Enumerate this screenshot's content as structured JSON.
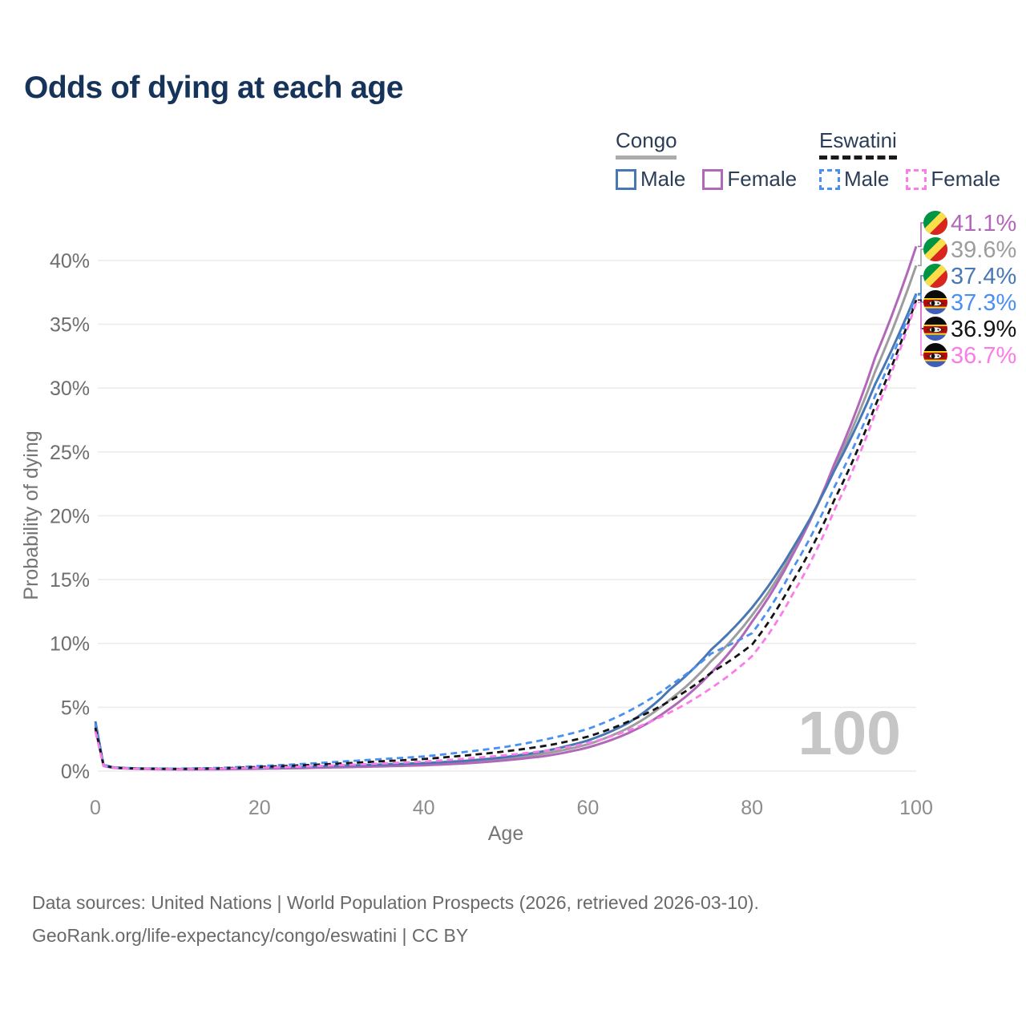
{
  "title": "Odds of dying at each age",
  "legend": {
    "groups": [
      {
        "name": "Congo",
        "line_style": "solid",
        "underline_color": "#ababab",
        "items": [
          {
            "label": "Male",
            "color": "#4878b4"
          },
          {
            "label": "Female",
            "color": "#b168b9"
          }
        ]
      },
      {
        "name": "Eswatini",
        "line_style": "dashed",
        "underline_color": "#1a1a1a",
        "items": [
          {
            "label": "Male",
            "color": "#4a90f0"
          },
          {
            "label": "Female",
            "color": "#fb7be7"
          }
        ]
      }
    ]
  },
  "footer": {
    "line1": "Data sources: United Nations | World Population Prospects (2026, retrieved 2026-03-10).",
    "line2": "GeoRank.org/life-expectancy/congo/eswatini | CC BY"
  },
  "chart_data": {
    "type": "line",
    "title": "Odds of dying at each age",
    "xlabel": "Age",
    "ylabel": "Probability of dying",
    "xlim": [
      0,
      100
    ],
    "ylim_pct": [
      0,
      43
    ],
    "xticks": [
      0,
      20,
      40,
      60,
      80,
      100
    ],
    "yticks_pct": [
      0,
      5,
      10,
      15,
      20,
      25,
      30,
      35,
      40
    ],
    "ytick_suffix": "%",
    "grid": "horizontal-only",
    "watermark": "100",
    "ages": [
      0,
      1,
      2,
      3,
      5,
      10,
      15,
      20,
      25,
      30,
      35,
      40,
      45,
      50,
      55,
      60,
      65,
      70,
      75,
      80,
      85,
      90,
      95,
      100
    ],
    "series": [
      {
        "name": "Congo Female",
        "country": "Congo",
        "sex": "Female",
        "line": "solid",
        "color": "#b168b9",
        "flag": "congo",
        "end_label": "41.1%",
        "values_pct": [
          3.3,
          0.4,
          0.27,
          0.22,
          0.17,
          0.13,
          0.14,
          0.19,
          0.24,
          0.3,
          0.37,
          0.46,
          0.6,
          0.85,
          1.2,
          1.85,
          3.0,
          4.9,
          7.7,
          11.7,
          17.0,
          24.0,
          32.4,
          41.1
        ]
      },
      {
        "name": "Congo Both sexes",
        "country": "Congo",
        "sex": "Both",
        "line": "solid",
        "color": "#9d9d9d",
        "flag": "congo",
        "end_label": "39.6%",
        "values_pct": [
          3.6,
          0.42,
          0.28,
          0.23,
          0.18,
          0.14,
          0.16,
          0.22,
          0.28,
          0.36,
          0.44,
          0.54,
          0.7,
          1.0,
          1.4,
          2.1,
          3.4,
          5.6,
          8.6,
          12.2,
          17.2,
          23.7,
          31.3,
          39.6
        ]
      },
      {
        "name": "Congo Male",
        "country": "Congo",
        "sex": "Male",
        "line": "solid",
        "color": "#4878b4",
        "flag": "congo",
        "end_label": "37.4%",
        "values_pct": [
          3.9,
          0.45,
          0.3,
          0.25,
          0.2,
          0.16,
          0.18,
          0.26,
          0.33,
          0.42,
          0.52,
          0.63,
          0.8,
          1.1,
          1.6,
          2.4,
          3.8,
          6.4,
          9.5,
          12.8,
          17.5,
          23.5,
          30.3,
          37.4
        ]
      },
      {
        "name": "Eswatini Male",
        "country": "Eswatini",
        "sex": "Male",
        "line": "dashed",
        "color": "#4a90f0",
        "flag": "eswatini",
        "end_label": "37.3%",
        "values_pct": [
          3.7,
          0.5,
          0.33,
          0.27,
          0.22,
          0.19,
          0.25,
          0.4,
          0.55,
          0.75,
          0.95,
          1.15,
          1.5,
          1.9,
          2.5,
          3.3,
          4.7,
          6.7,
          9.2,
          10.8,
          15.9,
          22.2,
          29.4,
          37.3
        ]
      },
      {
        "name": "Eswatini Both sexes",
        "country": "Eswatini",
        "sex": "Both",
        "line": "dashed",
        "color": "#141414",
        "flag": "eswatini",
        "end_label": "36.9%",
        "values_pct": [
          3.4,
          0.46,
          0.31,
          0.25,
          0.2,
          0.17,
          0.21,
          0.33,
          0.45,
          0.6,
          0.77,
          0.95,
          1.22,
          1.55,
          2.0,
          2.7,
          3.9,
          5.5,
          7.7,
          9.9,
          14.9,
          21.2,
          28.6,
          36.9
        ]
      },
      {
        "name": "Eswatini Female",
        "country": "Eswatini",
        "sex": "Female",
        "line": "dashed",
        "color": "#fb7be7",
        "flag": "eswatini",
        "end_label": "36.7%",
        "values_pct": [
          3.1,
          0.42,
          0.29,
          0.23,
          0.18,
          0.15,
          0.18,
          0.26,
          0.35,
          0.47,
          0.6,
          0.75,
          0.97,
          1.25,
          1.6,
          2.2,
          3.2,
          4.6,
          6.5,
          9.0,
          13.9,
          20.4,
          28.0,
          36.7
        ]
      }
    ],
    "flag_colors": {
      "congo": {
        "green": "#009543",
        "yellow": "#fbde4a",
        "red": "#dc241f"
      },
      "eswatini": {
        "black": "#0b0b0b",
        "yellow": "#ffd900",
        "red": "#b10c0c",
        "blue": "#3e5eb9",
        "shield": "#f2f2f2"
      }
    }
  }
}
